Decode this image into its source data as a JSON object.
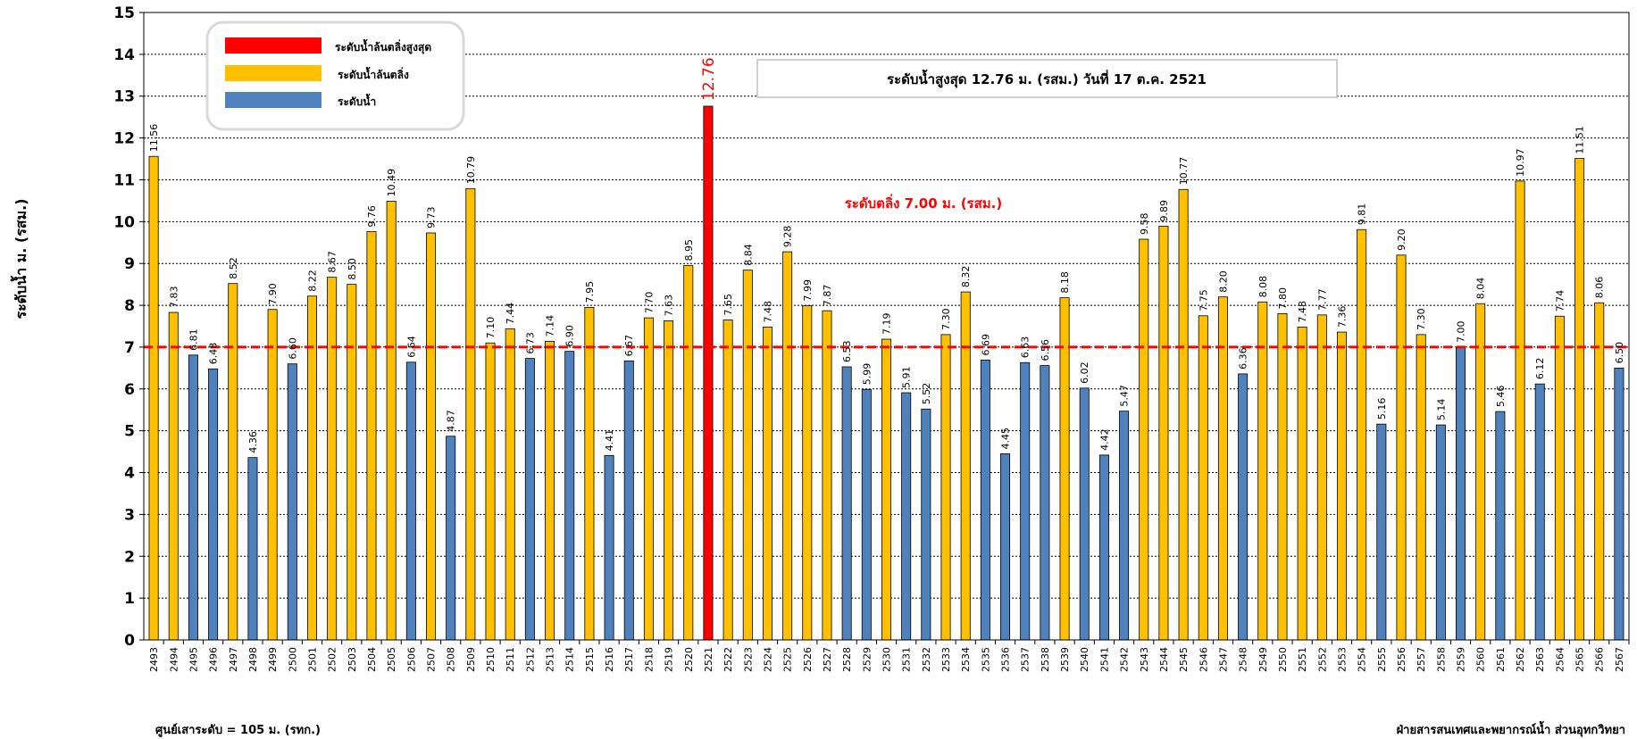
{
  "chart_data": {
    "type": "bar",
    "ylabel": "ระดับน้ำ ม. (รสม.)",
    "ylim": [
      0,
      15
    ],
    "yticks": [
      0,
      1,
      2,
      3,
      4,
      5,
      6,
      7,
      8,
      9,
      10,
      11,
      12,
      13,
      14,
      15
    ],
    "grid": true,
    "categories": [
      "2493",
      "2494",
      "2495",
      "2496",
      "2497",
      "2498",
      "2499",
      "2500",
      "2501",
      "2502",
      "2503",
      "2504",
      "2505",
      "2506",
      "2507",
      "2508",
      "2509",
      "2510",
      "2511",
      "2512",
      "2513",
      "2514",
      "2515",
      "2516",
      "2517",
      "2518",
      "2519",
      "2520",
      "2521",
      "2522",
      "2523",
      "2524",
      "2525",
      "2526",
      "2527",
      "2528",
      "2529",
      "2530",
      "2531",
      "2532",
      "2533",
      "2534",
      "2535",
      "2536",
      "2537",
      "2538",
      "2539",
      "2540",
      "2541",
      "2542",
      "2543",
      "2544",
      "2545",
      "2546",
      "2547",
      "2548",
      "2549",
      "2550",
      "2551",
      "2552",
      "2553",
      "2554",
      "2555",
      "2556",
      "2557",
      "2558",
      "2559",
      "2560",
      "2561",
      "2562",
      "2563",
      "2564",
      "2565",
      "2566",
      "2567"
    ],
    "values": [
      11.56,
      7.83,
      6.81,
      6.48,
      8.52,
      4.36,
      7.9,
      6.6,
      8.22,
      8.67,
      8.5,
      9.76,
      10.49,
      6.64,
      9.73,
      4.87,
      10.79,
      7.1,
      7.44,
      6.73,
      7.14,
      6.9,
      7.95,
      4.41,
      6.67,
      7.7,
      7.63,
      8.95,
      12.76,
      7.65,
      8.84,
      7.48,
      9.28,
      7.99,
      7.87,
      6.53,
      5.99,
      7.19,
      5.91,
      5.52,
      7.3,
      8.32,
      6.69,
      4.45,
      6.63,
      6.56,
      8.18,
      6.02,
      4.42,
      5.47,
      9.58,
      9.89,
      10.77,
      7.75,
      8.2,
      6.36,
      8.08,
      7.8,
      7.48,
      7.77,
      7.36,
      9.81,
      5.16,
      9.2,
      7.3,
      5.14,
      7.0,
      8.04,
      5.46,
      10.97,
      6.12,
      7.74,
      11.51,
      8.06,
      6.5
    ],
    "labels": [
      "11.56",
      "7.83",
      "6.81",
      "6.48",
      "8.52",
      "4.36",
      "7.90",
      "6.60",
      "8.22",
      "8.67",
      "8.50",
      "9.76",
      "10.49",
      "6.64",
      "9.73",
      "4.87",
      "10.79",
      "7.10",
      "7.44",
      "6.73",
      "7.14",
      "6.90",
      "7.95",
      "4.41",
      "6.67",
      "7.70",
      "7.63",
      "8.95",
      "12.76",
      "7.65",
      "8.84",
      "7.48",
      "9.28",
      "7.99",
      "7.87",
      "6.53",
      "5.99",
      "7.19",
      "5.91",
      "5.52",
      "7.30",
      "8.32",
      "6.69",
      "4.45",
      "6.63",
      "6.56",
      "8.18",
      "6.02",
      "4.42",
      "5.47",
      "9.58",
      "9.89",
      "10.77",
      "7.75",
      "8.20",
      "6.36",
      "8.08",
      "7.80",
      "7.48",
      "7.77",
      "7.36",
      "9.81",
      "5.16",
      "9.20",
      "7.30",
      "5.14",
      "7.00",
      "8.04",
      "5.46",
      "10.97",
      "6.12",
      "7.74",
      "11.51",
      "8.06",
      "6.50"
    ],
    "threshold": 7.0,
    "max_index": 28,
    "legend": {
      "placement": "top-left",
      "entries": [
        {
          "name": "ระดับน้ำล้นตลิ่งสูงสุด",
          "color": "#ff0000"
        },
        {
          "name": "ระดับน้ำล้นตลิ่ง",
          "color": "#ffc000"
        },
        {
          "name": "ระดับน้ำ",
          "color": "#4f81bd"
        }
      ]
    },
    "annotations": {
      "max_box": "ระดับน้ำสูงสุด 12.76 ม. (รสม.) วันที่ 17 ต.ค. 2521",
      "bank_level": "ระดับตลิ่ง 7.00 ม. (รสม.)"
    },
    "colors": {
      "max": "#ff0000",
      "over": "#ffc000",
      "normal": "#4f81bd",
      "threshold_line": "#ff0000"
    }
  },
  "footer": {
    "left": "ศูนย์เสาระดับ = 105 ม. (รทก.)",
    "right": "ฝ่ายสารสนเทศและพยากรณ์น้ำ ส่วนอุทกวิทยา"
  }
}
